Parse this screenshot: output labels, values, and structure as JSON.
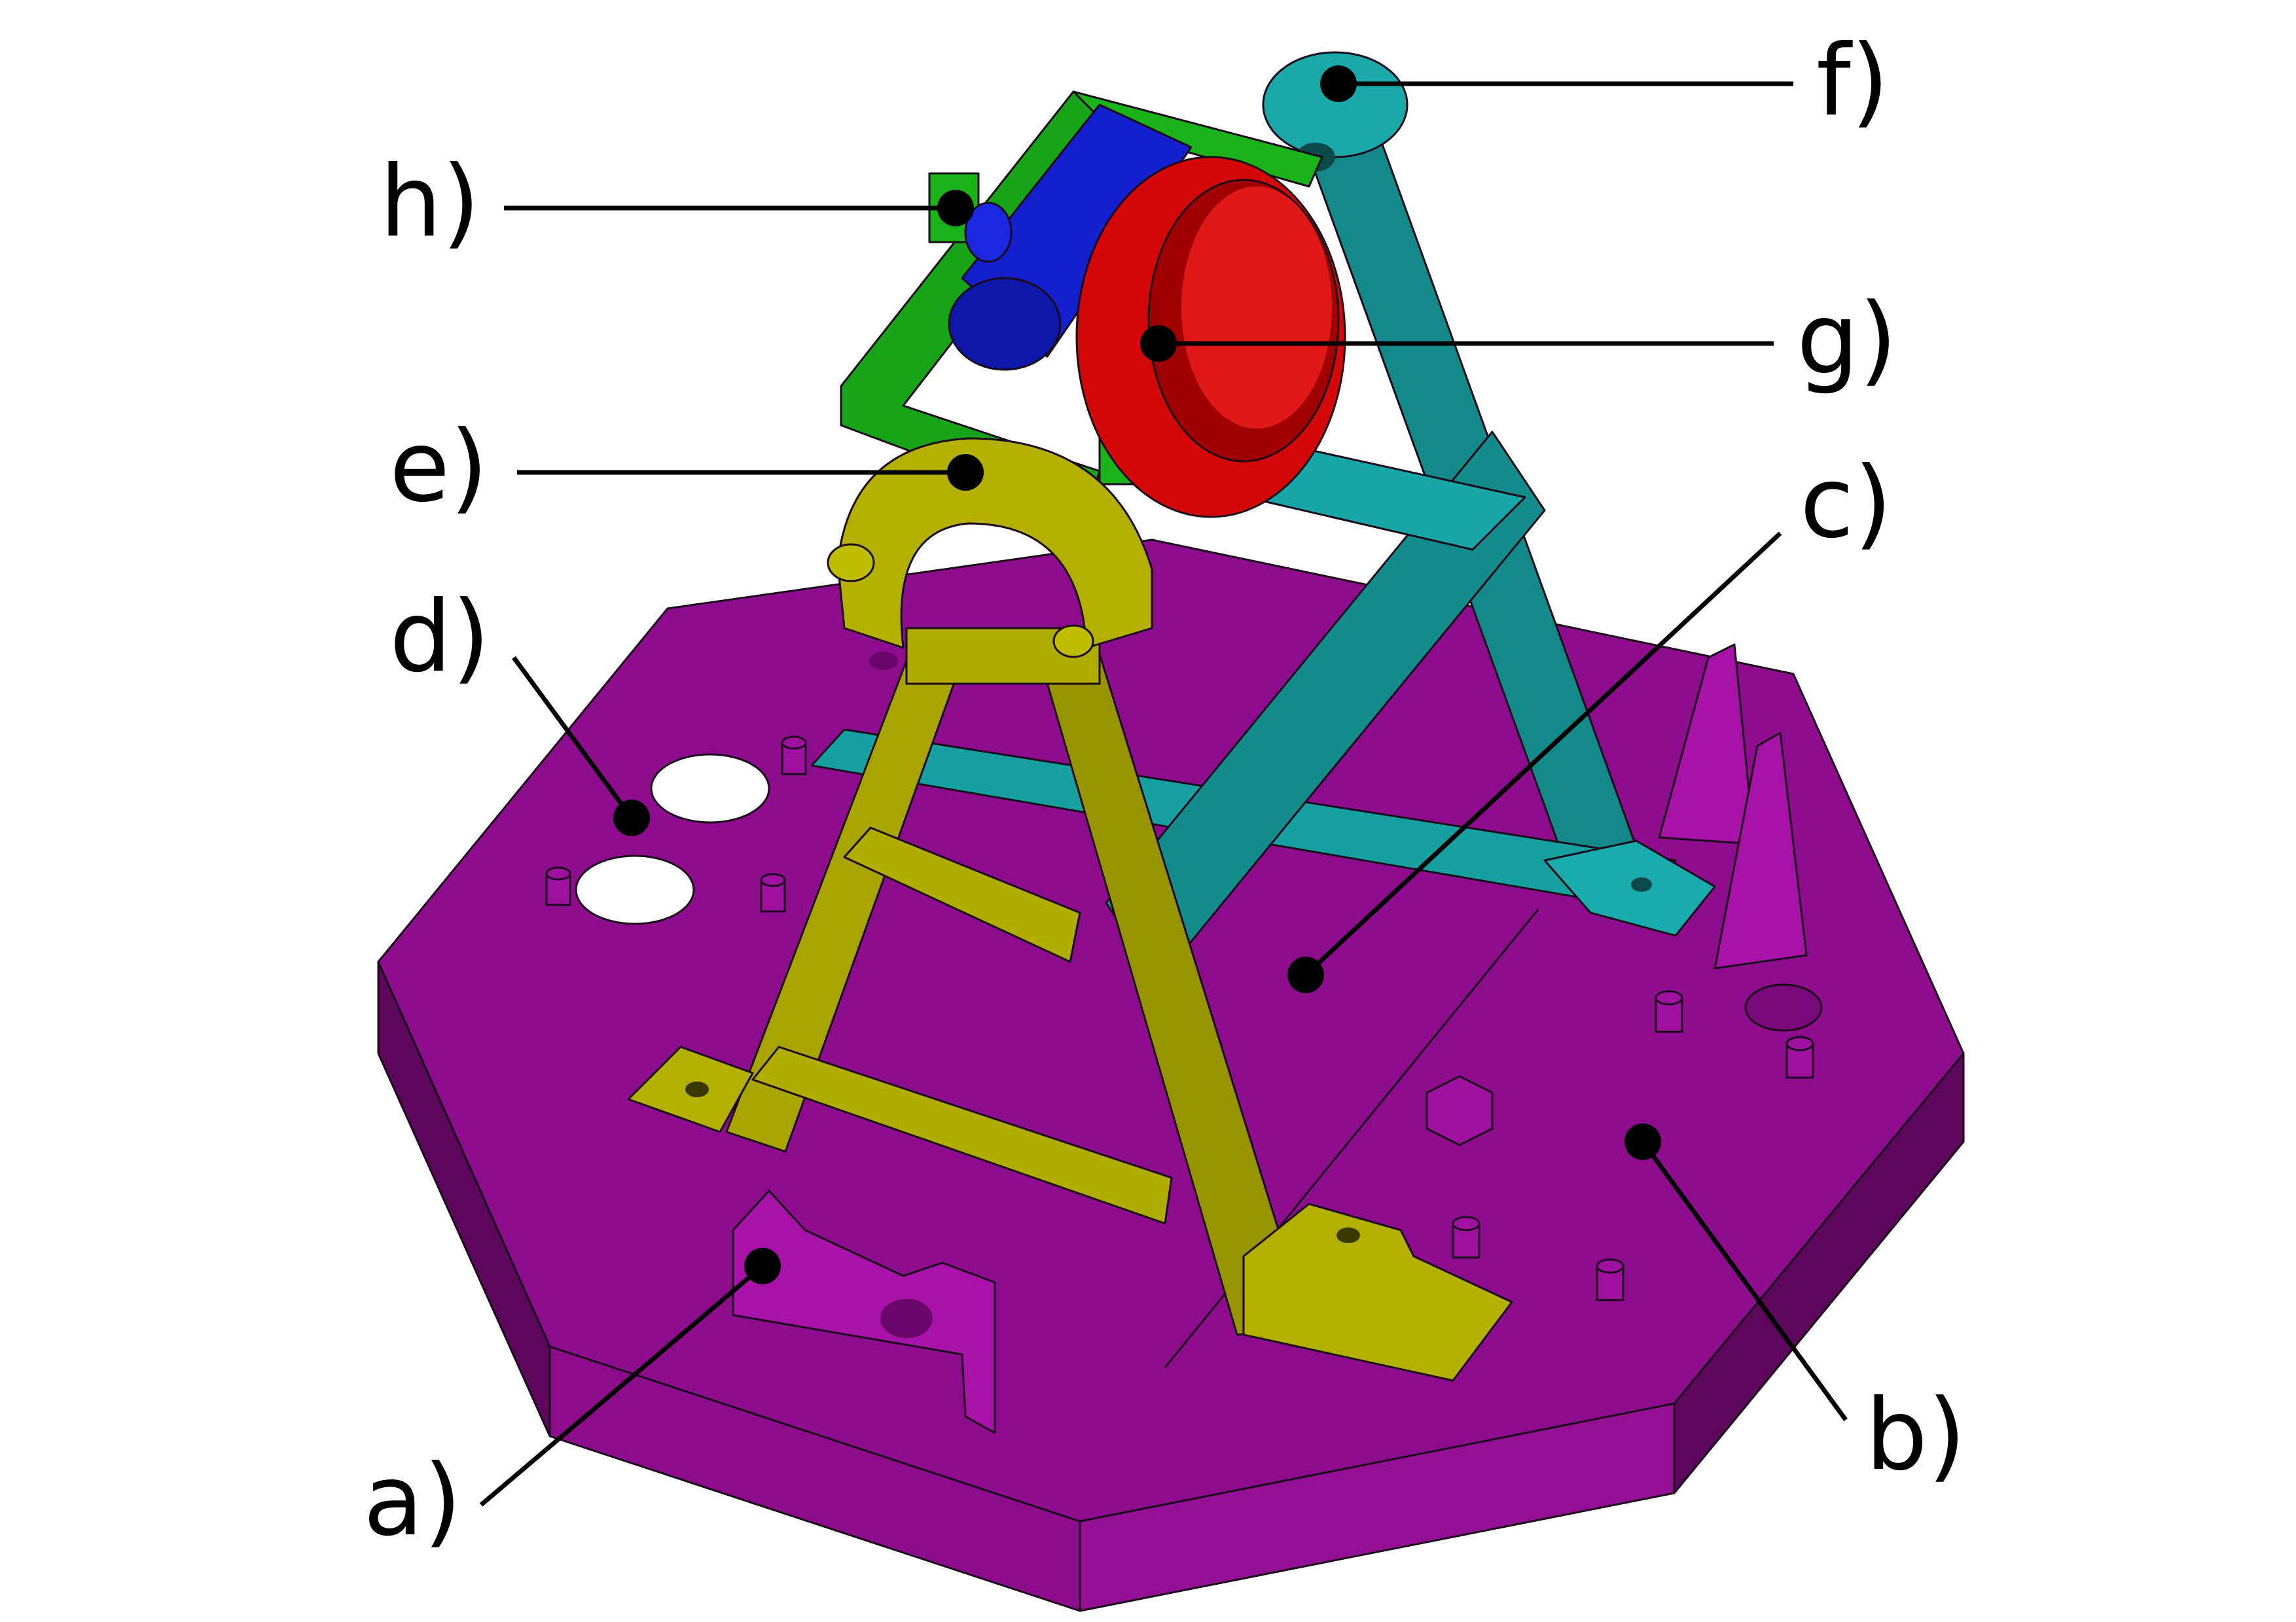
{
  "figure": {
    "callouts": [
      {
        "id": "a",
        "label": "a)"
      },
      {
        "id": "b",
        "label": "b)"
      },
      {
        "id": "c",
        "label": "c)"
      },
      {
        "id": "d",
        "label": "d)"
      },
      {
        "id": "e",
        "label": "e)"
      },
      {
        "id": "f",
        "label": "f)"
      },
      {
        "id": "g",
        "label": "g)"
      },
      {
        "id": "h",
        "label": "h)"
      }
    ],
    "colors": {
      "base_plate": "#8b0a8b",
      "yellow_frame": "#a3a000",
      "cyan_frame": "#149494",
      "red_ring": "#d40000",
      "blue_motor": "#0a14c8",
      "green_bracket": "#14a014",
      "leader_line": "#000000"
    }
  }
}
